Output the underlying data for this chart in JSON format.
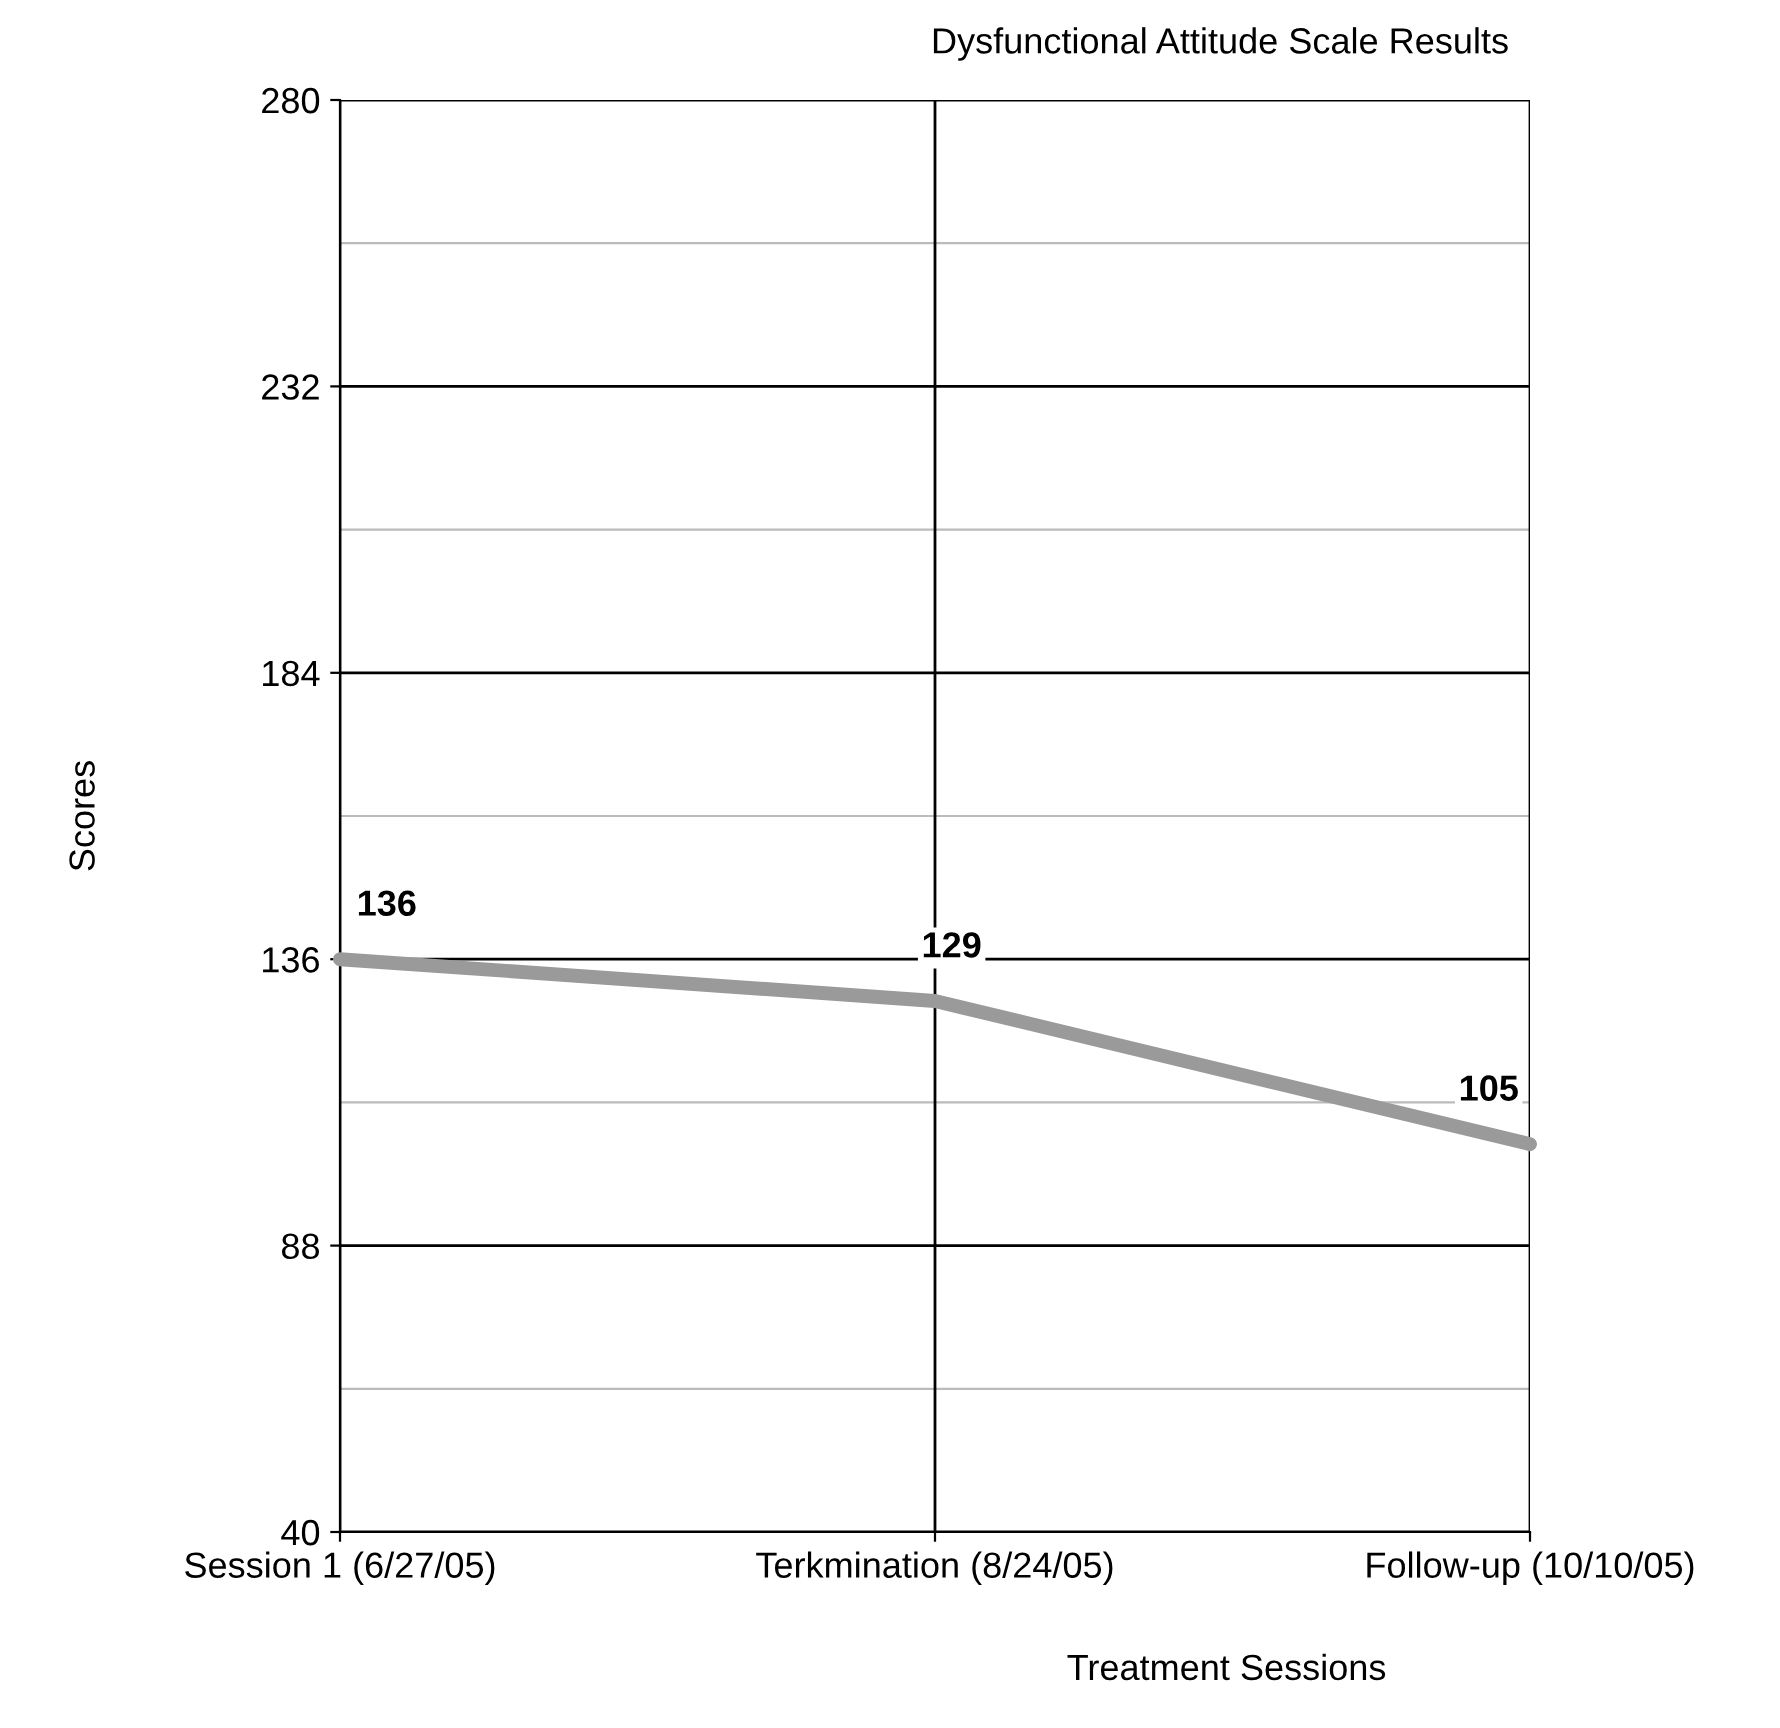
{
  "chart_data": {
    "type": "line",
    "title": "Dysfunctional Attitude Scale Results",
    "xlabel": "Treatment Sessions",
    "ylabel": "Scores",
    "categories": [
      "Session 1 (6/27/05)",
      "Terkmination (8/24/05)",
      "Follow-up (10/10/05)"
    ],
    "series": [
      {
        "color": "#9a9a9a",
        "values": [
          136,
          129,
          105
        ]
      }
    ],
    "ylim": [
      40,
      280
    ],
    "yticks": [
      40,
      {
        "value": 64,
        "label": null
      },
      88,
      {
        "value": 112,
        "label": null
      },
      136,
      {
        "value": 160,
        "label": null
      },
      184,
      {
        "value": 208,
        "label": null
      },
      232,
      {
        "value": 256,
        "label": null
      },
      280
    ],
    "grid": true,
    "data_labels": true,
    "marker": "none",
    "line_style": "solid",
    "legend": false
  }
}
